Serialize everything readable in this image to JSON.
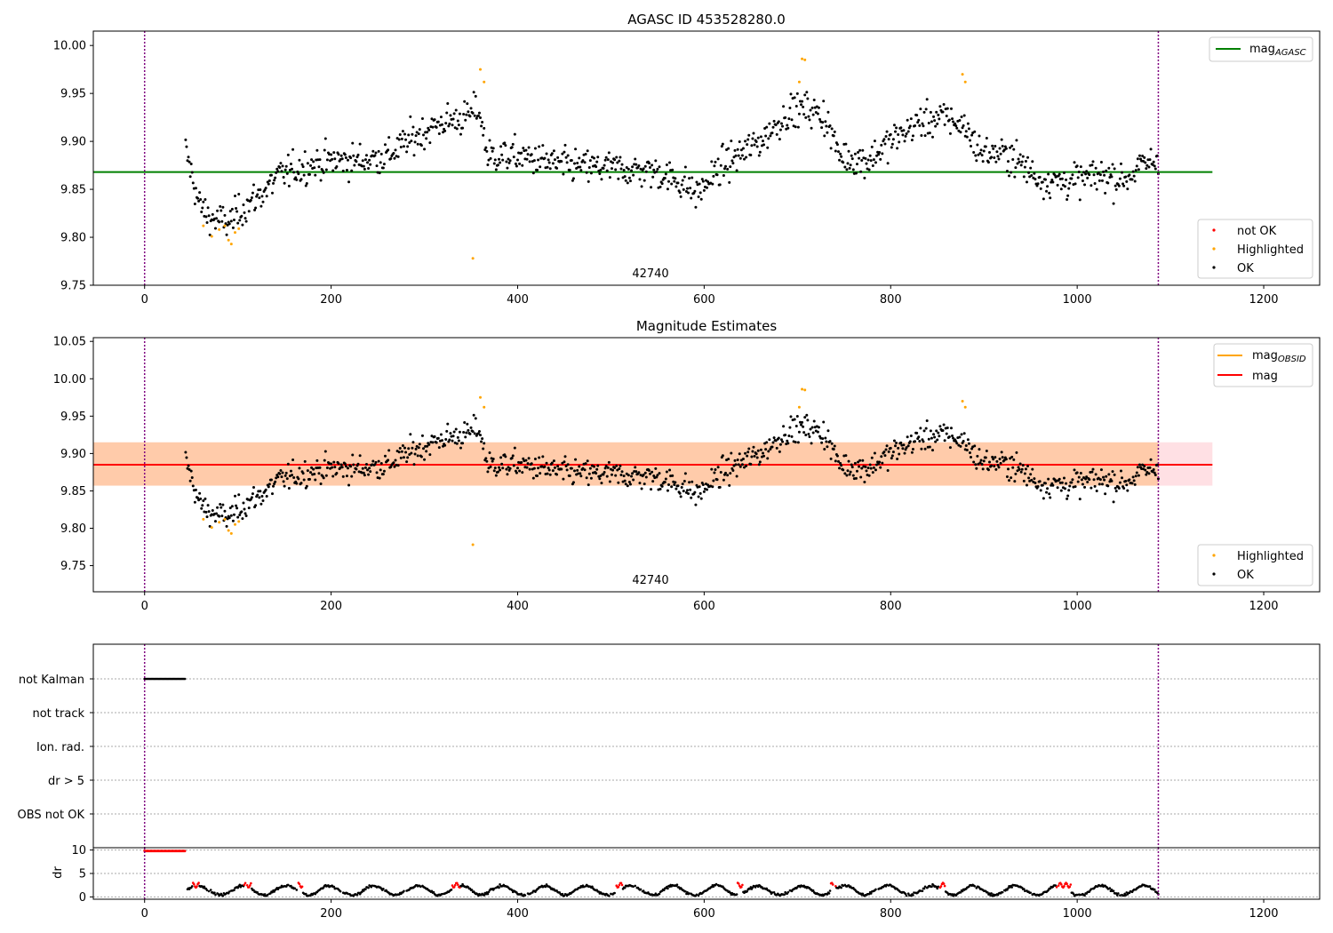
{
  "figure": {
    "title_top": "AGASC ID 453528280.0",
    "title_middle": "Magnitude Estimates",
    "obsid_label": "42740"
  },
  "colors": {
    "ok": "#000000",
    "highlighted": "#ffa500",
    "not_ok": "#ff0000",
    "mag_agasc": "#008000",
    "mag_obsid": "#ffa500",
    "mag": "#ff0000",
    "band_obsid": "#ffcbaa",
    "band_mag": "#ffe0e4",
    "obs_boundary": "#800080"
  },
  "chart_data": [
    {
      "type": "scatter",
      "title": "AGASC ID 453528280.0",
      "xlim": [
        -55,
        1260
      ],
      "ylim": [
        9.75,
        10.015
      ],
      "x_ticks": [
        0,
        200,
        400,
        600,
        800,
        1000,
        1200
      ],
      "y_ticks": [
        9.75,
        9.8,
        9.85,
        9.9,
        9.95,
        10.0
      ],
      "y_tick_labels": [
        "9.75",
        "9.80",
        "9.85",
        "9.90",
        "9.95",
        "10.00"
      ],
      "x_tick_labels": [
        "0",
        "200",
        "400",
        "600",
        "800",
        "1000",
        "1200"
      ],
      "reference_lines": [
        {
          "name": "mag_AGASC",
          "y": 9.868,
          "x": [
            -55,
            1145
          ],
          "color": "#008000"
        }
      ],
      "vertical_lines": [
        0,
        1087
      ],
      "legend_lines": {
        "label_main": "mag",
        "label_sub": "AGASC",
        "position": "upper right"
      },
      "legend_points": {
        "items": [
          "not OK",
          "Highlighted",
          "OK"
        ],
        "position": "lower right"
      },
      "series": [
        {
          "name": "not OK",
          "x": [],
          "y": []
        },
        {
          "name": "Highlighted",
          "x": [
            63,
            72,
            80,
            86,
            90,
            93,
            97,
            101,
            352,
            360,
            364,
            702,
            705,
            708,
            877,
            880
          ],
          "y": [
            9.812,
            9.801,
            9.808,
            9.812,
            9.797,
            9.793,
            9.805,
            9.809,
            9.778,
            9.975,
            9.962,
            9.962,
            9.986,
            9.985,
            9.97,
            9.962
          ]
        },
        {
          "name": "OK",
          "generated": true,
          "x_range": [
            44,
            1087
          ],
          "n": 1040
        }
      ]
    },
    {
      "type": "scatter",
      "title": "Magnitude Estimates",
      "xlim": [
        -55,
        1260
      ],
      "ylim": [
        9.715,
        10.055
      ],
      "x_ticks": [
        0,
        200,
        400,
        600,
        800,
        1000,
        1200
      ],
      "y_ticks": [
        9.75,
        9.8,
        9.85,
        9.9,
        9.95,
        10.0,
        10.05
      ],
      "y_tick_labels": [
        "9.75",
        "9.80",
        "9.85",
        "9.90",
        "9.95",
        "10.00",
        "10.05"
      ],
      "x_tick_labels": [
        "0",
        "200",
        "400",
        "600",
        "800",
        "1000",
        "1200"
      ],
      "reference_lines": [
        {
          "name": "mag_OBSID",
          "y": 9.885,
          "x": [
            -55,
            1087
          ],
          "color": "#ffa500"
        },
        {
          "name": "mag",
          "y": 9.885,
          "x": [
            -55,
            1145
          ],
          "color": "#ff0000"
        }
      ],
      "bands": [
        {
          "name": "mag_OBSID band",
          "y": [
            9.857,
            9.915
          ],
          "x": [
            -55,
            1087
          ],
          "color": "#ffcbaa"
        },
        {
          "name": "mag band",
          "y": [
            9.857,
            9.915
          ],
          "x": [
            1087,
            1145
          ],
          "color": "#ffe0e4"
        }
      ],
      "vertical_lines": [
        0,
        1087
      ],
      "legend_lines": {
        "items": [
          {
            "main": "mag",
            "sub": "OBSID"
          },
          {
            "main": "mag",
            "sub": ""
          }
        ],
        "position": "upper right"
      },
      "legend_points": {
        "items": [
          "Highlighted",
          "OK"
        ],
        "position": "lower right"
      }
    },
    {
      "type": "scatter",
      "title": "",
      "categories": [
        "not Kalman",
        "not track",
        "Ion. rad.",
        "dr > 5",
        "OBS not OK"
      ],
      "flags": [
        {
          "category": "not Kalman",
          "x_range": [
            0,
            44
          ]
        }
      ],
      "xlim": [
        -55,
        1260
      ],
      "vertical_lines": [
        0,
        1087
      ]
    },
    {
      "type": "scatter",
      "title": "",
      "ylabel": "dr",
      "xlim": [
        -55,
        1260
      ],
      "ylim": [
        -0.5,
        10.5
      ],
      "y_ticks": [
        0,
        5,
        10
      ],
      "y_tick_labels": [
        "0",
        "5",
        "10"
      ],
      "x_ticks": [
        0,
        200,
        400,
        600,
        800,
        1000,
        1200
      ],
      "x_tick_labels": [
        "0",
        "200",
        "400",
        "600",
        "800",
        "1000",
        "1200"
      ],
      "series": [
        {
          "name": "dr not OK (start)",
          "x_range": [
            0,
            44
          ],
          "y": 9.8,
          "color": "#ff0000"
        },
        {
          "name": "dr OK",
          "generated": true,
          "x_range": [
            46,
            1087
          ],
          "color": "#000000"
        },
        {
          "name": "dr not OK segments",
          "x_ranges": [
            [
              52,
              58
            ],
            [
              107,
              114
            ],
            [
              164,
              169
            ],
            [
              330,
              338
            ],
            [
              505,
              512
            ],
            [
              636,
              641
            ],
            [
              736,
              741
            ],
            [
              852,
              858
            ],
            [
              978,
              993
            ]
          ],
          "color": "#ff0000"
        }
      ],
      "vertical_lines": [
        0,
        1087
      ]
    }
  ]
}
